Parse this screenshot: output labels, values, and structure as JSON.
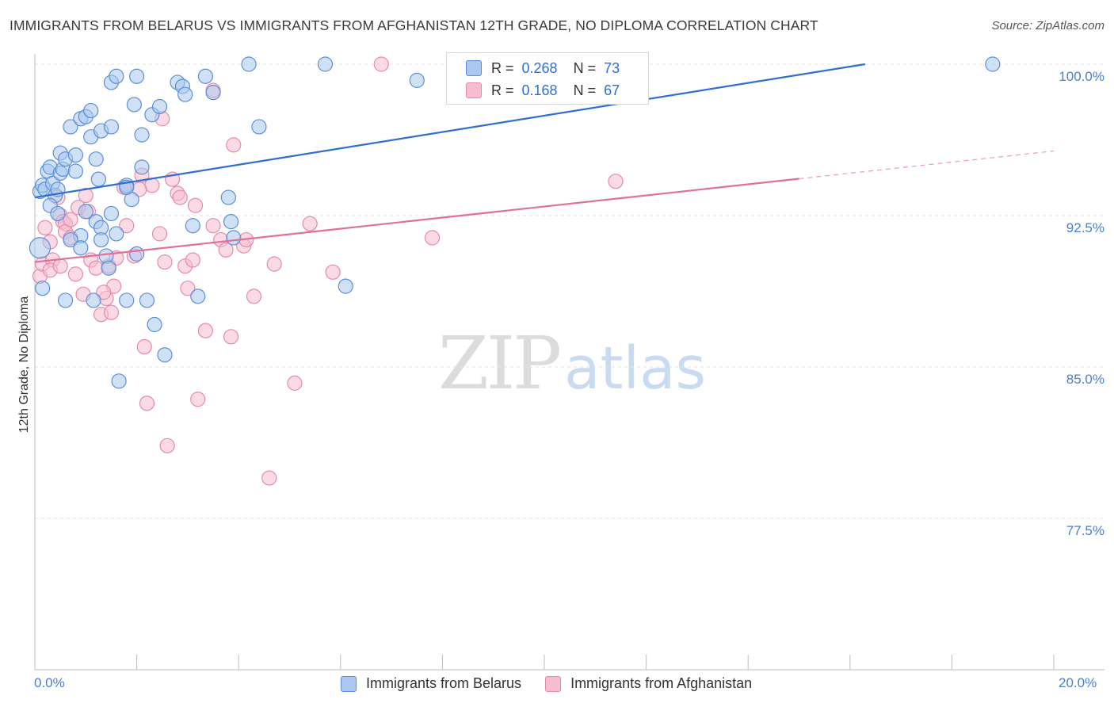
{
  "title": "IMMIGRANTS FROM BELARUS VS IMMIGRANTS FROM AFGHANISTAN 12TH GRADE, NO DIPLOMA CORRELATION CHART",
  "source": "Source: ZipAtlas.com",
  "watermark": {
    "zip": "ZIP",
    "atlas": "atlas"
  },
  "colors": {
    "belarus_fill": "#aac8ef",
    "belarus_stroke": "#5b8fd8",
    "belarus_line": "#2e6fd0",
    "afghan_fill": "#f6bdd0",
    "afghan_stroke": "#e68aab",
    "afghan_line": "#e0709a",
    "axis_text": "#4a7fd0",
    "grid": "#e3e3e3"
  },
  "legend": {
    "rows": [
      {
        "r_label": "R =",
        "r_value": "0.268",
        "n_label": "N =",
        "n_value": "73"
      },
      {
        "r_label": "R =",
        "r_value": "0.168",
        "n_label": "N =",
        "n_value": "67"
      }
    ]
  },
  "bottom_legend": [
    "Immigrants from Belarus",
    "Immigrants from Afghanistan"
  ],
  "chart_data": {
    "type": "scatter",
    "title": "IMMIGRANTS FROM BELARUS VS IMMIGRANTS FROM AFGHANISTAN 12TH GRADE, NO DIPLOMA CORRELATION CHART",
    "xlabel": "",
    "ylabel": "12th Grade, No Diploma",
    "xlim": [
      0,
      20
    ],
    "ylim": [
      70,
      101
    ],
    "x_tick_labels": {
      "min": "0.0%",
      "max": "20.0%"
    },
    "y_ticks": [
      100,
      92.5,
      85,
      77.5
    ],
    "y_tick_labels": [
      "100.0%",
      "92.5%",
      "85.0%",
      "77.5%"
    ],
    "series": [
      {
        "name": "Immigrants from Belarus",
        "R": 0.268,
        "N": 73,
        "trend": {
          "x0": 0.0,
          "y0": 93.4,
          "x1": 20.0,
          "y1": 101.5,
          "solid_until": 20.0
        },
        "points": [
          [
            0.1,
            90.9
          ],
          [
            0.15,
            88.9
          ],
          [
            0.1,
            93.7
          ],
          [
            0.15,
            94.0
          ],
          [
            0.2,
            93.8
          ],
          [
            0.25,
            94.7
          ],
          [
            0.3,
            94.9
          ],
          [
            0.35,
            94.1
          ],
          [
            0.4,
            93.5
          ],
          [
            0.45,
            93.8
          ],
          [
            0.5,
            94.6
          ],
          [
            0.55,
            94.8
          ],
          [
            0.3,
            93.0
          ],
          [
            0.5,
            95.6
          ],
          [
            0.6,
            95.3
          ],
          [
            0.8,
            95.5
          ],
          [
            0.8,
            94.7
          ],
          [
            0.6,
            88.3
          ],
          [
            0.7,
            96.9
          ],
          [
            0.9,
            97.3
          ],
          [
            1.0,
            97.4
          ],
          [
            1.1,
            97.7
          ],
          [
            1.2,
            95.3
          ],
          [
            1.25,
            94.3
          ],
          [
            1.1,
            96.4
          ],
          [
            1.3,
            96.7
          ],
          [
            1.5,
            96.9
          ],
          [
            1.5,
            99.1
          ],
          [
            1.6,
            99.4
          ],
          [
            2.0,
            99.4
          ],
          [
            1.95,
            98.0
          ],
          [
            2.3,
            97.5
          ],
          [
            2.45,
            97.9
          ],
          [
            2.8,
            99.1
          ],
          [
            2.9,
            98.9
          ],
          [
            2.95,
            98.5
          ],
          [
            3.35,
            99.4
          ],
          [
            3.5,
            98.6
          ],
          [
            4.2,
            100.0
          ],
          [
            5.7,
            100.0
          ],
          [
            7.5,
            99.2
          ],
          [
            18.8,
            100.0
          ],
          [
            2.1,
            94.9
          ],
          [
            1.8,
            94.0
          ],
          [
            1.9,
            93.3
          ],
          [
            2.1,
            96.5
          ],
          [
            0.45,
            92.6
          ],
          [
            1.0,
            92.7
          ],
          [
            1.2,
            92.2
          ],
          [
            1.5,
            92.6
          ],
          [
            1.3,
            91.9
          ],
          [
            0.9,
            91.5
          ],
          [
            0.7,
            91.3
          ],
          [
            1.3,
            91.3
          ],
          [
            1.4,
            90.5
          ],
          [
            1.45,
            89.9
          ],
          [
            1.15,
            88.3
          ],
          [
            1.8,
            88.3
          ],
          [
            2.2,
            88.3
          ],
          [
            2.35,
            87.1
          ],
          [
            2.55,
            85.6
          ],
          [
            1.65,
            84.3
          ],
          [
            3.1,
            92.0
          ],
          [
            3.2,
            88.5
          ],
          [
            3.8,
            93.4
          ],
          [
            3.85,
            92.2
          ],
          [
            3.9,
            91.4
          ],
          [
            4.4,
            96.9
          ],
          [
            6.1,
            89.0
          ],
          [
            1.8,
            93.9
          ],
          [
            0.9,
            90.9
          ],
          [
            1.6,
            91.6
          ],
          [
            2.0,
            90.6
          ]
        ]
      },
      {
        "name": "Immigrants from Afghanistan",
        "R": 0.168,
        "N": 67,
        "trend": {
          "x0": 0.0,
          "y0": 90.2,
          "x1": 20.0,
          "y1": 95.7,
          "solid_until": 15.0
        },
        "points": [
          [
            0.1,
            89.5
          ],
          [
            0.15,
            90.1
          ],
          [
            0.2,
            91.9
          ],
          [
            0.3,
            91.2
          ],
          [
            0.35,
            90.3
          ],
          [
            0.45,
            93.4
          ],
          [
            0.5,
            92.5
          ],
          [
            0.55,
            92.2
          ],
          [
            0.6,
            92.1
          ],
          [
            0.6,
            91.7
          ],
          [
            0.7,
            91.4
          ],
          [
            0.8,
            89.6
          ],
          [
            0.85,
            92.9
          ],
          [
            0.95,
            88.6
          ],
          [
            1.0,
            93.5
          ],
          [
            1.05,
            92.7
          ],
          [
            1.1,
            90.3
          ],
          [
            1.2,
            89.9
          ],
          [
            1.3,
            87.6
          ],
          [
            1.4,
            88.4
          ],
          [
            1.45,
            90.0
          ],
          [
            1.5,
            87.7
          ],
          [
            1.55,
            89.0
          ],
          [
            1.6,
            90.4
          ],
          [
            1.75,
            93.9
          ],
          [
            1.8,
            92.0
          ],
          [
            1.95,
            90.5
          ],
          [
            2.1,
            94.5
          ],
          [
            2.15,
            86.0
          ],
          [
            2.2,
            83.2
          ],
          [
            2.3,
            94.0
          ],
          [
            2.45,
            91.6
          ],
          [
            2.5,
            97.3
          ],
          [
            2.55,
            90.2
          ],
          [
            2.6,
            81.1
          ],
          [
            2.7,
            94.3
          ],
          [
            2.8,
            93.6
          ],
          [
            2.85,
            93.4
          ],
          [
            2.95,
            90.0
          ],
          [
            3.0,
            88.9
          ],
          [
            3.1,
            90.3
          ],
          [
            3.15,
            93.0
          ],
          [
            3.2,
            83.4
          ],
          [
            3.35,
            86.8
          ],
          [
            3.5,
            92.0
          ],
          [
            3.5,
            98.7
          ],
          [
            3.65,
            91.3
          ],
          [
            3.75,
            90.8
          ],
          [
            3.85,
            86.5
          ],
          [
            3.9,
            96.0
          ],
          [
            4.1,
            91.0
          ],
          [
            4.15,
            91.3
          ],
          [
            4.3,
            88.5
          ],
          [
            4.6,
            79.5
          ],
          [
            4.7,
            90.1
          ],
          [
            5.1,
            84.2
          ],
          [
            5.4,
            92.1
          ],
          [
            5.85,
            89.7
          ],
          [
            6.8,
            100.0
          ],
          [
            7.8,
            91.4
          ],
          [
            10.5,
            98.5
          ],
          [
            11.4,
            94.2
          ],
          [
            0.3,
            89.8
          ],
          [
            0.5,
            90.0
          ],
          [
            1.35,
            88.7
          ],
          [
            2.05,
            93.8
          ],
          [
            0.7,
            92.3
          ]
        ]
      }
    ]
  }
}
